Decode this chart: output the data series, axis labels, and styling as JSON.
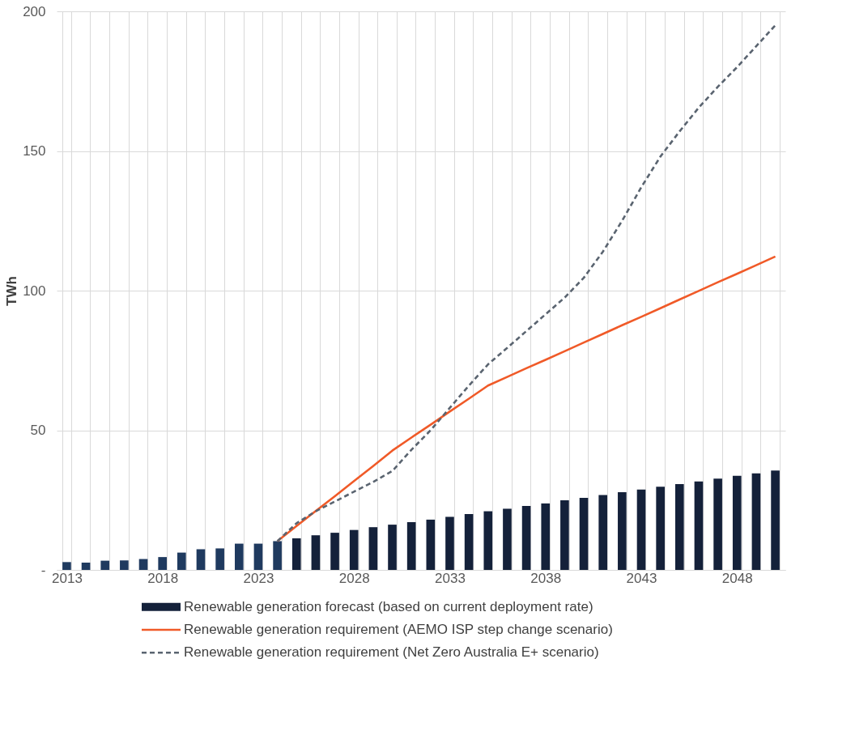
{
  "chart_data": {
    "type": "bar",
    "ylabel": "TWh",
    "categories": [
      "2013",
      null,
      null,
      null,
      null,
      "2018",
      null,
      null,
      null,
      null,
      "2023",
      null,
      null,
      null,
      null,
      "2028",
      null,
      null,
      null,
      null,
      "2033",
      null,
      null,
      null,
      null,
      "2038",
      null,
      null,
      null,
      null,
      "2043",
      null,
      null,
      null,
      null,
      "2048",
      null,
      null
    ],
    "series": [
      {
        "name": "Renewable generation forecast (based on current deployment rate)",
        "color": "#14213a",
        "colors": [
          "#1f3a5f",
          "#1f3a5f",
          "#1f3a5f",
          "#1f3a5f",
          "#1f3a5f",
          "#1f3a5f",
          "#1f3a5f",
          "#1f3a5f",
          "#1f3a5f",
          "#1f3a5f",
          "#1f3a5f",
          "#1f3a5f",
          "#14213a",
          "#14213a",
          "#14213a",
          "#14213a",
          "#14213a",
          "#14213a",
          "#14213a",
          "#14213a",
          "#14213a",
          "#14213a",
          "#14213a",
          "#14213a",
          "#14213a",
          "#14213a",
          "#14213a",
          "#14213a",
          "#14213a",
          "#14213a",
          "#14213a",
          "#14213a",
          "#14213a",
          "#14213a",
          "#14213a",
          "#14213a",
          "#14213a",
          "#14213a"
        ],
        "values": [
          2.8,
          2.6,
          3.3,
          3.4,
          3.9,
          4.6,
          6.2,
          7.4,
          7.7,
          9.4,
          9.4,
          10.3,
          11.3,
          12.4,
          13.3,
          14.3,
          15.3,
          16.2,
          17.1,
          18.0,
          19.0,
          20.0,
          21.0,
          21.9,
          22.9,
          23.8,
          24.9,
          25.8,
          26.8,
          27.8,
          28.8,
          29.8,
          30.7,
          31.7,
          32.7,
          33.7,
          34.6,
          35.6
        ]
      },
      {
        "type": "line",
        "name": "Renewable generation requirement (AEMO ISP step change scenario)",
        "color": "#f05a28",
        "line_style": "solid",
        "values": [
          null,
          null,
          null,
          null,
          null,
          null,
          null,
          null,
          null,
          null,
          null,
          10.3,
          15.7,
          21.1,
          26.4,
          31.8,
          37.2,
          42.7,
          47.4,
          52.0,
          56.7,
          61.3,
          66.0,
          69.1,
          72.2,
          75.2,
          78.3,
          81.4,
          84.5,
          87.6,
          90.6,
          93.7,
          96.8,
          99.9,
          103.0,
          106.0,
          109.1,
          112.2
        ]
      },
      {
        "type": "line",
        "name": "Renewable generation requirement (Net Zero Australia E+ scenario)",
        "color": "#5a6470",
        "line_style": "dashed",
        "values": [
          null,
          null,
          null,
          null,
          null,
          null,
          null,
          null,
          null,
          null,
          null,
          10.3,
          16.7,
          21.0,
          24.5,
          28.0,
          31.5,
          35.4,
          43.0,
          50.0,
          58.0,
          66.0,
          73.6,
          79.5,
          85.5,
          91.5,
          97.5,
          104.6,
          114.0,
          125.0,
          137.0,
          148.0,
          157.0,
          165.5,
          173.0,
          180.0,
          187.5,
          195.0
        ]
      }
    ],
    "ylim": [
      0,
      200
    ],
    "yticks": [
      {
        "value": 0,
        "label": "-"
      },
      50,
      100,
      150,
      200
    ],
    "grid": true,
    "marker": "none",
    "legend": "bottom"
  }
}
